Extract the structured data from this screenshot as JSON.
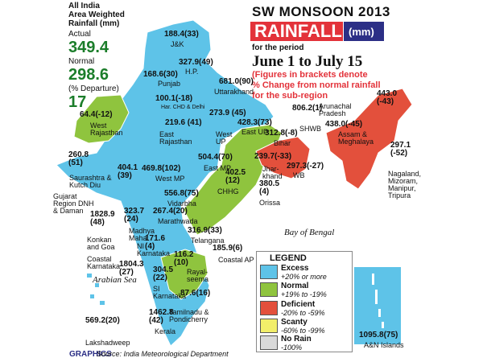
{
  "header": {
    "title": "SW MONSOON 2013",
    "rain_label": "RAINFALL",
    "unit_label": "(mm)",
    "period_label": "for the period",
    "period_dates": "June 1 to July 15",
    "note_line1": "(Figures in brackets denote",
    "note_line2": "% Change from normal rainfall",
    "note_line3": "for the sub-region"
  },
  "all_india": {
    "title_line1": "All India",
    "title_line2": "Area Weighted",
    "title_line3": "Rainfall (mm)",
    "actual_label": "Actual",
    "actual_value": "349.4",
    "normal_label": "Normal",
    "normal_value": "298.6",
    "departure_label": "(% Departure)",
    "departure_value": "17"
  },
  "colors": {
    "excess": "#5ec3e8",
    "normal": "#8fc43e",
    "deficient": "#e3503c",
    "scanty": "#f2ee6a",
    "no_rain": "#d9d9d9",
    "sea": "#ffffff",
    "title_red": "#e3323a",
    "title_navy": "#2c2f86",
    "green_text": "#1b7d2a"
  },
  "regions": [
    {
      "value": "188.4(33)",
      "name": "J&K"
    },
    {
      "value": "327.9(49)",
      "name": "H.P."
    },
    {
      "value": "168.6(30)",
      "name": "Punjab"
    },
    {
      "value": "681.0(90)",
      "name": "Uttarakhand"
    },
    {
      "value": "100.1(-18)",
      "name": "Har. CHD & Delhi"
    },
    {
      "value": "64.4(-12)",
      "name": "West Rajasthan"
    },
    {
      "value": "219.6 (41)",
      "name": "East Rajasthan"
    },
    {
      "value": "273.9 (45)",
      "name": "West UP"
    },
    {
      "value": "428.3(73)",
      "name": "East UP"
    },
    {
      "value": "806.2(1)",
      "name": "Arunachal Pradesh"
    },
    {
      "value": "443.0 (-43)",
      "name": ""
    },
    {
      "value": "438.0(-45)",
      "name": "Assam & Meghalaya"
    },
    {
      "value": "312.8(-8)",
      "name": "Bihar"
    },
    {
      "value": "",
      "name": "SHWB"
    },
    {
      "value": "297.1 (-52)",
      "name": "Nagaland, Mizoram, Manipur, Tripura"
    },
    {
      "value": "239.7(-33)",
      "name": "Jhar-khand"
    },
    {
      "value": "297.3(-27)",
      "name": "WB"
    },
    {
      "value": "260.8 (51)",
      "name": "Saurashtra & Kutch Diu"
    },
    {
      "value": "404.1 (39)",
      "name": ""
    },
    {
      "value": "469.8(102)",
      "name": "West MP"
    },
    {
      "value": "504.4(70)",
      "name": "East MP"
    },
    {
      "value": "402.5 (12)",
      "name": "CHHG"
    },
    {
      "value": "380.5 (4)",
      "name": "Orissa"
    },
    {
      "value": "556.8(75)",
      "name": "Vidarbha"
    },
    {
      "value": "1828.9 (48)",
      "name": "Gujarat Region DNH & Daman"
    },
    {
      "value": "323.7 (24)",
      "name": "Madhya Maha"
    },
    {
      "value": "267.4(20)",
      "name": "Marathwada"
    },
    {
      "value": "316.9(33)",
      "name": "Telangana"
    },
    {
      "value": "171.6 (4)",
      "name": "NI Karnataka"
    },
    {
      "value": "185.9(6)",
      "name": "Coastal AP"
    },
    {
      "value": "",
      "name": "Konkan and Goa"
    },
    {
      "value": "",
      "name": "Coastal Karnataka"
    },
    {
      "value": "1804.3 (27)",
      "name": ""
    },
    {
      "value": "116.2 (10)",
      "name": "Rayal-seema"
    },
    {
      "value": "304.5 (22)",
      "name": "SI Karnataka"
    },
    {
      "value": "87.6(16)",
      "name": "Tamilnadu & Pondicherry"
    },
    {
      "value": "1462.8 (42)",
      "name": "Kerala"
    },
    {
      "value": "569.2(20)",
      "name": "Lakshadweep"
    },
    {
      "value": "1095.8(75)",
      "name": "A&N Islands"
    }
  ],
  "water_labels": {
    "bay": "Bay of Bengal",
    "arabian": "Arabian Sea"
  },
  "legend": {
    "title": "LEGEND",
    "items": [
      {
        "name": "Excess",
        "range": "+20% or more"
      },
      {
        "name": "Normal",
        "range": "+19% to -19%"
      },
      {
        "name": "Deficient",
        "range": "-20% to -59%"
      },
      {
        "name": "Scanty",
        "range": "-60% to -99%"
      },
      {
        "name": "No Rain",
        "range": "-100%"
      }
    ]
  },
  "footer": {
    "brand": "GRAPHICS",
    "source": "Source: India Meteorological Department"
  }
}
